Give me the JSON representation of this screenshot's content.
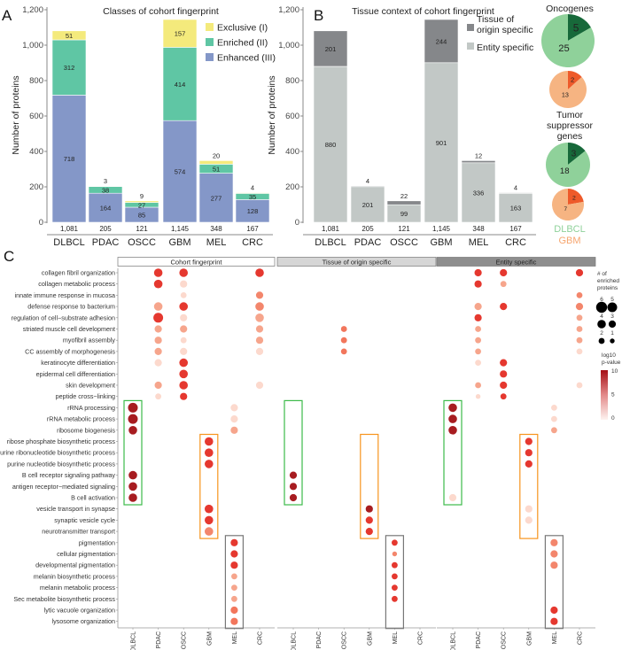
{
  "panels": {
    "a": "A",
    "b": "B",
    "c": "C"
  },
  "chart_data": [
    {
      "type": "bar",
      "stacked": true,
      "title": "Classes of  cohort fingerprint",
      "ylabel": "Number of proteins",
      "xlabel": "",
      "ylim": [
        0,
        1200
      ],
      "yticks": [
        "0",
        "200",
        "400",
        "600",
        "800",
        "1,000",
        "1,200"
      ],
      "categories": [
        "DLBCL",
        "PDAC",
        "OSCC",
        "GBM",
        "MEL",
        "CRC"
      ],
      "totals": [
        "1,081",
        "205",
        "121",
        "1,145",
        "348",
        "167"
      ],
      "series": [
        {
          "name": "Enhanced (III)",
          "color": "#8497c8",
          "values": [
            718,
            164,
            85,
            574,
            277,
            128
          ]
        },
        {
          "name": "Enriched (II)",
          "color": "#5fc6a4",
          "values": [
            312,
            38,
            27,
            414,
            51,
            35
          ]
        },
        {
          "name": "Exclusive (I)",
          "color": "#f4ea7c",
          "values": [
            51,
            3,
            9,
            157,
            20,
            4
          ]
        }
      ],
      "legend_order": [
        "Exclusive (I)",
        "Enriched (II)",
        "Enhanced (III)"
      ],
      "legend_position": "top-right"
    },
    {
      "type": "bar",
      "stacked": true,
      "title": "Tissue context of cohort fingerprint",
      "ylabel": "Number of proteins",
      "xlabel": "",
      "ylim": [
        0,
        1200
      ],
      "yticks": [
        "0",
        "200",
        "400",
        "600",
        "800",
        "1,000",
        "1,200"
      ],
      "categories": [
        "DLBCL",
        "PDAC",
        "OSCC",
        "GBM",
        "MEL",
        "CRC"
      ],
      "totals": [
        "1,081",
        "205",
        "121",
        "1,145",
        "348",
        "167"
      ],
      "series": [
        {
          "name": "Entity specific",
          "color": "#c2c8c6",
          "values": [
            880,
            201,
            99,
            901,
            336,
            163
          ]
        },
        {
          "name": "Tissue of origin specific",
          "color": "#85878a",
          "values": [
            201,
            4,
            22,
            244,
            12,
            4
          ]
        }
      ],
      "legend": [
        [
          "Tissue of",
          "origin specific"
        ],
        [
          "Entity specific"
        ]
      ],
      "legend_position": "top-right"
    },
    {
      "type": "pie",
      "groups": [
        {
          "title": [
            "Oncogenes"
          ],
          "pies": [
            {
              "name": "DLBCL",
              "slices": [
                5,
                25
              ],
              "colors": [
                "#17693a",
                "#8fd19a"
              ]
            },
            {
              "name": "GBM",
              "slices": [
                2,
                13
              ],
              "colors": [
                "#ee5a2a",
                "#f6b482"
              ]
            }
          ]
        },
        {
          "title": [
            "Tumor",
            "suppressor",
            "genes"
          ],
          "pies": [
            {
              "name": "DLBCL",
              "slices": [
                3,
                18
              ],
              "colors": [
                "#17693a",
                "#8fd19a"
              ]
            },
            {
              "name": "GBM",
              "slices": [
                2,
                7
              ],
              "colors": [
                "#ee5a2a",
                "#f6b482"
              ]
            }
          ]
        }
      ],
      "legend": [
        {
          "name": "DLBCL",
          "color": "#8fd19a"
        },
        {
          "name": "GBM",
          "color": "#f6a56e"
        }
      ]
    },
    {
      "type": "scatter",
      "subtype": "dotplot",
      "columns": [
        "DLBCL",
        "PDAC",
        "OSCC",
        "GBM",
        "MEL",
        "CRC"
      ],
      "terms": [
        "collagen fibril organization",
        "collagen metabolic process",
        "innate immune response in mucosa",
        "defense response to bacterium",
        "regulation of cell−substrate adhesion",
        "striated muscle cell development",
        "myofibril assembly",
        "CC assembly of morphogenesis",
        "keratinocyte differentiation",
        "epidermal cell differentiation",
        "skin development",
        "peptide cross−linking",
        "rRNA processing",
        "rRNA metabolic process",
        "ribosome biogenesis",
        "ribose phosphate biosynthetic process",
        "purine ribonucleotide biosynthetic process",
        "purine nucleotide biosynthetic process",
        "B cell receptor signaling pathway",
        "antigen receptor−mediated signaling",
        "B cell activation",
        "vesicle transport in synapse",
        "synaptic vesicle cycle",
        "neurotransmitter transport",
        "pigmentation",
        "cellular pigmentation",
        "developmental pigmentation",
        "melanin biosynthetic process",
        "melanin metabolic process",
        "Sec metabolite biosynthetic process",
        "lytic vacuole organization",
        "lysosome organization"
      ],
      "point_format": [
        "term_index",
        "column",
        "n_enriched_proteins",
        "log10_pvalue"
      ],
      "facets": [
        {
          "name": "Cohort fingerprint",
          "points": [
            [
              0,
              "PDAC",
              4,
              6
            ],
            [
              0,
              "OSCC",
              4,
              6
            ],
            [
              0,
              "CRC",
              4,
              6
            ],
            [
              1,
              "PDAC",
              4,
              6
            ],
            [
              1,
              "OSCC",
              3,
              1
            ],
            [
              2,
              "OSCC",
              2,
              1
            ],
            [
              2,
              "CRC",
              3,
              4
            ],
            [
              3,
              "PDAC",
              4,
              3
            ],
            [
              3,
              "OSCC",
              4,
              6
            ],
            [
              3,
              "CRC",
              4,
              4
            ],
            [
              4,
              "PDAC",
              5,
              6
            ],
            [
              4,
              "OSCC",
              3,
              1
            ],
            [
              4,
              "CRC",
              4,
              3
            ],
            [
              5,
              "PDAC",
              3,
              3
            ],
            [
              5,
              "OSCC",
              3,
              3
            ],
            [
              5,
              "CRC",
              3,
              3
            ],
            [
              6,
              "PDAC",
              3,
              3
            ],
            [
              6,
              "OSCC",
              2,
              1
            ],
            [
              6,
              "CRC",
              3,
              3
            ],
            [
              7,
              "PDAC",
              3,
              3
            ],
            [
              7,
              "OSCC",
              3,
              1
            ],
            [
              7,
              "CRC",
              3,
              1
            ],
            [
              8,
              "PDAC",
              3,
              1
            ],
            [
              8,
              "OSCC",
              4,
              6
            ],
            [
              9,
              "OSCC",
              4,
              6
            ],
            [
              10,
              "PDAC",
              3,
              3
            ],
            [
              10,
              "OSCC",
              4,
              6
            ],
            [
              10,
              "CRC",
              3,
              1
            ],
            [
              11,
              "PDAC",
              2,
              1
            ],
            [
              11,
              "OSCC",
              3,
              6
            ],
            [
              12,
              "DLBCL",
              5,
              9
            ],
            [
              12,
              "MEL",
              3,
              1
            ],
            [
              13,
              "DLBCL",
              5,
              9
            ],
            [
              13,
              "MEL",
              3,
              1
            ],
            [
              14,
              "DLBCL",
              4,
              9
            ],
            [
              14,
              "MEL",
              3,
              3
            ],
            [
              15,
              "GBM",
              4,
              6
            ],
            [
              16,
              "GBM",
              4,
              6
            ],
            [
              17,
              "GBM",
              4,
              6
            ],
            [
              18,
              "DLBCL",
              4,
              9
            ],
            [
              19,
              "DLBCL",
              4,
              9
            ],
            [
              20,
              "DLBCL",
              4,
              9
            ],
            [
              21,
              "GBM",
              4,
              6
            ],
            [
              22,
              "GBM",
              4,
              6
            ],
            [
              23,
              "GBM",
              4,
              4
            ],
            [
              24,
              "MEL",
              3,
              6
            ],
            [
              25,
              "MEL",
              3,
              6
            ],
            [
              26,
              "MEL",
              3,
              6
            ],
            [
              27,
              "MEL",
              2,
              3
            ],
            [
              28,
              "MEL",
              2,
              3
            ],
            [
              29,
              "MEL",
              2,
              3
            ],
            [
              30,
              "MEL",
              3,
              4.5
            ],
            [
              31,
              "MEL",
              3,
              4.5
            ]
          ]
        },
        {
          "name": "Tissue of origin specific",
          "points": [
            [
              5,
              "OSCC",
              2,
              4.5
            ],
            [
              6,
              "OSCC",
              2,
              4.5
            ],
            [
              7,
              "OSCC",
              2,
              4.5
            ],
            [
              18,
              "DLBCL",
              3,
              9
            ],
            [
              19,
              "DLBCL",
              3,
              9
            ],
            [
              20,
              "DLBCL",
              3,
              9
            ],
            [
              21,
              "GBM",
              3,
              9
            ],
            [
              22,
              "GBM",
              3,
              6
            ],
            [
              23,
              "GBM",
              3,
              6
            ],
            [
              24,
              "MEL",
              2,
              6
            ],
            [
              25,
              "MEL",
              1,
              4
            ],
            [
              26,
              "MEL",
              2,
              6
            ],
            [
              27,
              "MEL",
              2,
              6
            ],
            [
              28,
              "MEL",
              2,
              6
            ],
            [
              29,
              "MEL",
              2,
              6
            ]
          ]
        },
        {
          "name": "Entity specific",
          "points": [
            [
              0,
              "PDAC",
              3,
              6
            ],
            [
              0,
              "OSCC",
              3,
              6
            ],
            [
              0,
              "CRC",
              3,
              6
            ],
            [
              1,
              "PDAC",
              3,
              6
            ],
            [
              1,
              "OSCC",
              2,
              3
            ],
            [
              2,
              "CRC",
              2,
              4
            ],
            [
              3,
              "PDAC",
              3,
              3
            ],
            [
              3,
              "OSCC",
              3,
              6
            ],
            [
              3,
              "CRC",
              3,
              4
            ],
            [
              4,
              "PDAC",
              3,
              6
            ],
            [
              4,
              "CRC",
              2,
              3
            ],
            [
              5,
              "PDAC",
              2,
              3
            ],
            [
              5,
              "CRC",
              2,
              3
            ],
            [
              6,
              "PDAC",
              2,
              3
            ],
            [
              6,
              "CRC",
              2,
              3
            ],
            [
              7,
              "PDAC",
              2,
              3
            ],
            [
              7,
              "CRC",
              2,
              1
            ],
            [
              8,
              "PDAC",
              2,
              1
            ],
            [
              8,
              "OSCC",
              3,
              6
            ],
            [
              9,
              "OSCC",
              3,
              6
            ],
            [
              10,
              "PDAC",
              2,
              3
            ],
            [
              10,
              "OSCC",
              3,
              6
            ],
            [
              10,
              "CRC",
              2,
              1
            ],
            [
              11,
              "PDAC",
              1,
              1
            ],
            [
              11,
              "OSCC",
              2,
              6
            ],
            [
              12,
              "DLBCL",
              4,
              9
            ],
            [
              12,
              "MEL",
              2,
              1
            ],
            [
              13,
              "DLBCL",
              4,
              9
            ],
            [
              13,
              "MEL",
              2,
              1
            ],
            [
              14,
              "DLBCL",
              4,
              9
            ],
            [
              14,
              "MEL",
              2,
              3
            ],
            [
              15,
              "GBM",
              3,
              6
            ],
            [
              16,
              "GBM",
              3,
              6
            ],
            [
              17,
              "GBM",
              3,
              6
            ],
            [
              20,
              "DLBCL",
              3,
              1
            ],
            [
              21,
              "GBM",
              3,
              1
            ],
            [
              22,
              "GBM",
              3,
              1
            ],
            [
              24,
              "MEL",
              3,
              4
            ],
            [
              25,
              "MEL",
              3,
              4
            ],
            [
              26,
              "MEL",
              3,
              4
            ],
            [
              30,
              "MEL",
              3,
              6
            ],
            [
              31,
              "MEL",
              3,
              6
            ]
          ]
        }
      ],
      "highlights": [
        {
          "column": "DLBCL",
          "rows": [
            12,
            20
          ],
          "color": "#3cba4a"
        },
        {
          "column": "GBM",
          "rows": [
            15,
            23
          ],
          "color": "#f7941d"
        },
        {
          "column": "MEL",
          "rows": [
            24,
            31
          ],
          "color": "#777777"
        }
      ],
      "size_legend": {
        "title": [
          "# of",
          "enriched",
          "proteins"
        ],
        "values": [
          6,
          5,
          4,
          3,
          2,
          1
        ]
      },
      "color_legend": {
        "title": [
          "log10",
          "p-value"
        ],
        "range": [
          0,
          10
        ],
        "ticks": [
          "10",
          "5",
          "0"
        ],
        "colors": [
          "#fdf3f0",
          "#a50f15"
        ]
      }
    }
  ]
}
